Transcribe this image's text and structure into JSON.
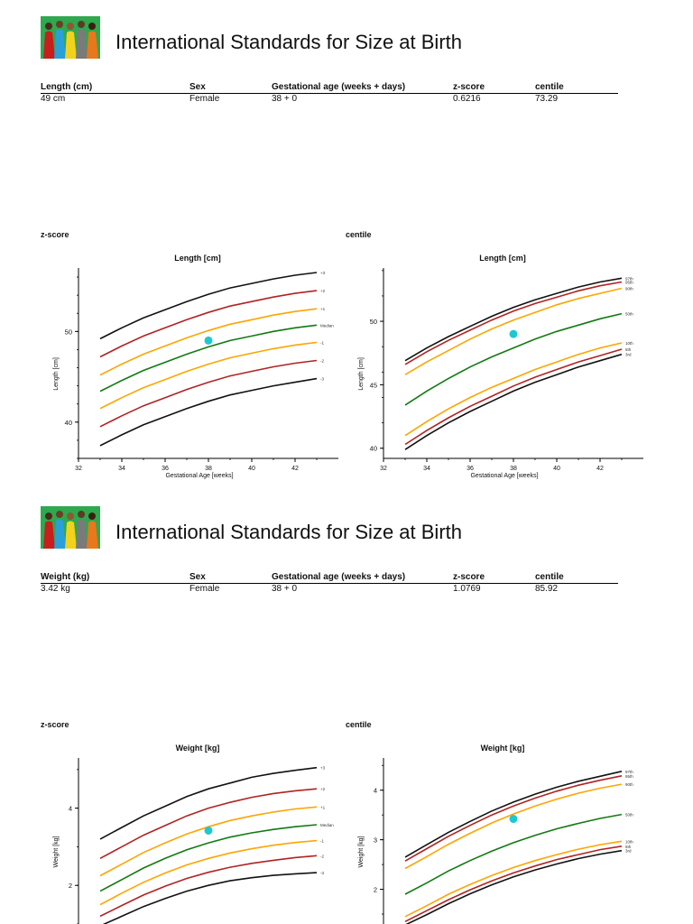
{
  "sections": [
    {
      "title": "International Standards for Size at Birth",
      "table": {
        "headers": [
          "Length (cm)",
          "Sex",
          "Gestational age (weeks + days)",
          "z-score",
          "centile"
        ],
        "values": [
          "49 cm",
          "Female",
          "38 + 0",
          "0.6216",
          "73.29"
        ]
      },
      "zscore_label": "z-score",
      "centile_label": "centile"
    },
    {
      "title": "International Standards for Size at Birth",
      "table": {
        "headers": [
          "Weight (kg)",
          "Sex",
          "Gestational age (weeks + days)",
          "z-score",
          "centile"
        ],
        "values": [
          "3.42 kg",
          "Female",
          "38 + 0",
          "1.0769",
          "85.92"
        ]
      },
      "zscore_label": "z-score",
      "centile_label": "centile"
    }
  ],
  "chart_data": [
    {
      "type": "line",
      "title": "Length [cm]",
      "xlabel": "Gestational Age [weeks]",
      "ylabel": "Length [cm]",
      "xlim": [
        32,
        44
      ],
      "ylim": [
        36,
        57
      ],
      "xticks": [
        32,
        34,
        36,
        38,
        40,
        42
      ],
      "yticks": [
        40,
        50
      ],
      "x": [
        33,
        34,
        35,
        36,
        37,
        38,
        39,
        40,
        41,
        42,
        43
      ],
      "series": [
        {
          "name": "+3",
          "color": "#111111",
          "values": [
            49.2,
            50.4,
            51.5,
            52.4,
            53.3,
            54.1,
            54.8,
            55.3,
            55.8,
            56.2,
            56.5
          ]
        },
        {
          "name": "+2",
          "color": "#b22222",
          "values": [
            47.2,
            48.4,
            49.5,
            50.4,
            51.3,
            52.1,
            52.8,
            53.3,
            53.8,
            54.2,
            54.5
          ]
        },
        {
          "name": "+1",
          "color": "#ffa500",
          "values": [
            45.2,
            46.4,
            47.5,
            48.4,
            49.3,
            50.1,
            50.8,
            51.3,
            51.8,
            52.2,
            52.5
          ]
        },
        {
          "name": "Median",
          "color": "#117a11",
          "values": [
            43.4,
            44.6,
            45.7,
            46.6,
            47.5,
            48.3,
            49.0,
            49.5,
            50.0,
            50.4,
            50.7
          ]
        },
        {
          "name": "-1",
          "color": "#ffa500",
          "values": [
            41.5,
            42.7,
            43.8,
            44.7,
            45.6,
            46.4,
            47.1,
            47.6,
            48.1,
            48.5,
            48.8
          ]
        },
        {
          "name": "-2",
          "color": "#b22222",
          "values": [
            39.5,
            40.7,
            41.8,
            42.7,
            43.6,
            44.4,
            45.1,
            45.6,
            46.1,
            46.5,
            46.8
          ]
        },
        {
          "name": "-3",
          "color": "#111111",
          "values": [
            37.4,
            38.6,
            39.7,
            40.6,
            41.5,
            42.3,
            43.0,
            43.5,
            44.0,
            44.4,
            44.8
          ]
        }
      ],
      "point": {
        "x": 38,
        "y": 49,
        "color": "#1ec8d2"
      }
    },
    {
      "type": "line",
      "title": "Length [cm]",
      "xlabel": "Gestational Age [weeks]",
      "ylabel": "Length [cm]",
      "xlim": [
        32,
        44
      ],
      "ylim": [
        39.2,
        54.2
      ],
      "xticks": [
        32,
        34,
        36,
        38,
        40,
        42
      ],
      "yticks": [
        40,
        45,
        50
      ],
      "x": [
        33,
        34,
        35,
        36,
        37,
        38,
        39,
        40,
        41,
        42,
        43
      ],
      "series": [
        {
          "name": "97th",
          "color": "#111111",
          "values": [
            46.9,
            47.9,
            48.8,
            49.6,
            50.4,
            51.1,
            51.7,
            52.2,
            52.7,
            53.1,
            53.4
          ]
        },
        {
          "name": "95th",
          "color": "#b22222",
          "values": [
            46.6,
            47.6,
            48.5,
            49.3,
            50.1,
            50.8,
            51.4,
            51.9,
            52.4,
            52.8,
            53.1
          ]
        },
        {
          "name": "90th",
          "color": "#ffa500",
          "values": [
            45.8,
            46.8,
            47.7,
            48.6,
            49.4,
            50.1,
            50.7,
            51.3,
            51.8,
            52.2,
            52.6
          ]
        },
        {
          "name": "50th",
          "color": "#117a11",
          "values": [
            43.4,
            44.5,
            45.5,
            46.4,
            47.2,
            47.9,
            48.6,
            49.2,
            49.7,
            50.2,
            50.6
          ]
        },
        {
          "name": "10th",
          "color": "#ffa500",
          "values": [
            41.0,
            42.1,
            43.1,
            44.0,
            44.8,
            45.5,
            46.2,
            46.8,
            47.4,
            47.9,
            48.3
          ]
        },
        {
          "name": "5th",
          "color": "#b22222",
          "values": [
            40.3,
            41.4,
            42.4,
            43.3,
            44.1,
            44.9,
            45.6,
            46.2,
            46.8,
            47.3,
            47.8
          ]
        },
        {
          "name": "3rd",
          "color": "#111111",
          "values": [
            39.9,
            41.0,
            42.0,
            42.9,
            43.7,
            44.5,
            45.2,
            45.8,
            46.4,
            46.9,
            47.4
          ]
        }
      ],
      "point": {
        "x": 38,
        "y": 49,
        "color": "#1ec8d2"
      }
    },
    {
      "type": "line",
      "title": "Weight [kg]",
      "xlabel": "",
      "ylabel": "Weight [kg]",
      "xlim": [
        32,
        44
      ],
      "ylim": [
        1.0,
        5.3
      ],
      "xticks": [],
      "yticks": [
        2,
        4
      ],
      "x": [
        33,
        34,
        35,
        36,
        37,
        38,
        39,
        40,
        41,
        42,
        43
      ],
      "series": [
        {
          "name": "+3",
          "color": "#111111",
          "values": [
            3.2,
            3.5,
            3.8,
            4.05,
            4.3,
            4.5,
            4.65,
            4.8,
            4.9,
            4.98,
            5.05
          ]
        },
        {
          "name": "+2",
          "color": "#b22222",
          "values": [
            2.7,
            3.0,
            3.3,
            3.55,
            3.8,
            4.0,
            4.15,
            4.28,
            4.38,
            4.45,
            4.5
          ]
        },
        {
          "name": "+1",
          "color": "#ffa500",
          "values": [
            2.25,
            2.55,
            2.85,
            3.1,
            3.33,
            3.52,
            3.68,
            3.8,
            3.9,
            3.98,
            4.03
          ]
        },
        {
          "name": "Median",
          "color": "#117a11",
          "values": [
            1.85,
            2.15,
            2.45,
            2.7,
            2.92,
            3.1,
            3.25,
            3.36,
            3.45,
            3.52,
            3.57
          ]
        },
        {
          "name": "-1",
          "color": "#ffa500",
          "values": [
            1.5,
            1.8,
            2.08,
            2.32,
            2.53,
            2.7,
            2.84,
            2.95,
            3.04,
            3.11,
            3.16
          ]
        },
        {
          "name": "-2",
          "color": "#b22222",
          "values": [
            1.2,
            1.48,
            1.75,
            1.98,
            2.18,
            2.34,
            2.47,
            2.57,
            2.65,
            2.72,
            2.77
          ]
        },
        {
          "name": "-3",
          "color": "#111111",
          "values": [
            0.95,
            1.2,
            1.45,
            1.66,
            1.85,
            2.0,
            2.12,
            2.2,
            2.26,
            2.3,
            2.33
          ]
        }
      ],
      "point": {
        "x": 38,
        "y": 3.42,
        "color": "#1ec8d2"
      }
    },
    {
      "type": "line",
      "title": "Weight [kg]",
      "xlabel": "",
      "ylabel": "Weight [kg]",
      "xlim": [
        32,
        44
      ],
      "ylim": [
        1.3,
        4.65
      ],
      "xticks": [],
      "yticks": [
        2,
        3,
        4
      ],
      "x": [
        33,
        34,
        35,
        36,
        37,
        38,
        39,
        40,
        41,
        42,
        43
      ],
      "series": [
        {
          "name": "97th",
          "color": "#111111",
          "values": [
            2.65,
            2.9,
            3.15,
            3.37,
            3.58,
            3.76,
            3.92,
            4.06,
            4.18,
            4.28,
            4.38
          ]
        },
        {
          "name": "95th",
          "color": "#b22222",
          "values": [
            2.57,
            2.82,
            3.07,
            3.29,
            3.5,
            3.68,
            3.84,
            3.98,
            4.1,
            4.2,
            4.29
          ]
        },
        {
          "name": "90th",
          "color": "#ffa500",
          "values": [
            2.42,
            2.66,
            2.91,
            3.13,
            3.34,
            3.52,
            3.68,
            3.82,
            3.94,
            4.04,
            4.12
          ]
        },
        {
          "name": "50th",
          "color": "#117a11",
          "values": [
            1.9,
            2.13,
            2.37,
            2.58,
            2.77,
            2.94,
            3.09,
            3.22,
            3.33,
            3.43,
            3.51
          ]
        },
        {
          "name": "10th",
          "color": "#ffa500",
          "values": [
            1.45,
            1.67,
            1.9,
            2.1,
            2.28,
            2.44,
            2.58,
            2.7,
            2.81,
            2.9,
            2.97
          ]
        },
        {
          "name": "5th",
          "color": "#b22222",
          "values": [
            1.35,
            1.57,
            1.79,
            1.99,
            2.17,
            2.33,
            2.47,
            2.6,
            2.7,
            2.8,
            2.87
          ]
        },
        {
          "name": "3rd",
          "color": "#111111",
          "values": [
            1.28,
            1.49,
            1.71,
            1.91,
            2.09,
            2.25,
            2.39,
            2.51,
            2.62,
            2.71,
            2.78
          ]
        }
      ],
      "point": {
        "x": 38,
        "y": 3.42,
        "color": "#1ec8d2"
      }
    }
  ]
}
